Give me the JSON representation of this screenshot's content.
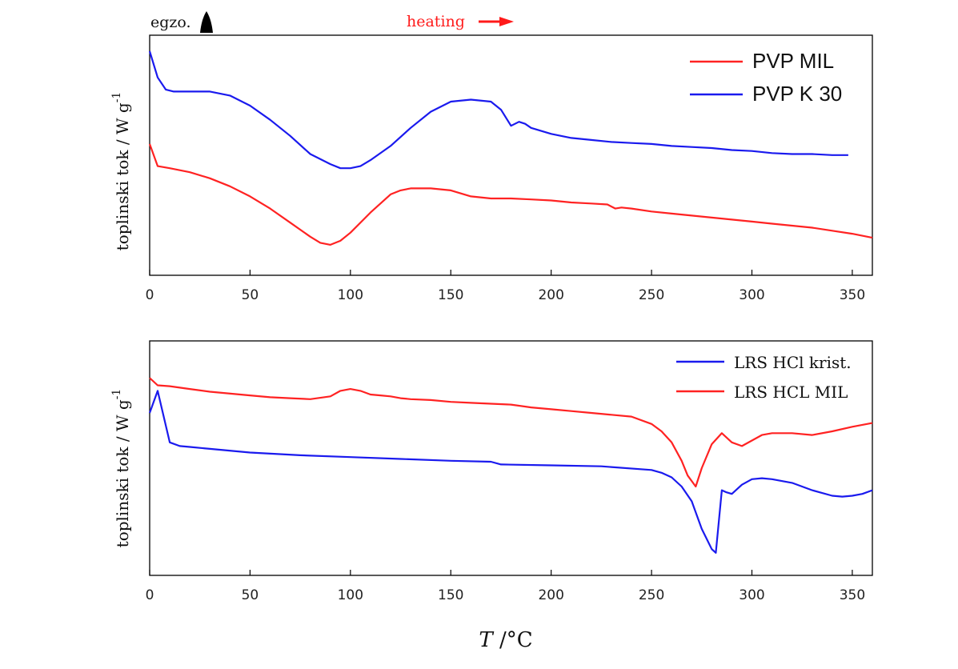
{
  "annotations": {
    "exo": "egzo.",
    "heating": "heating",
    "heating_color": "#ff1a1a"
  },
  "xlabel_var": "T",
  "xlabel_unit": " /°C",
  "chart_data": [
    {
      "type": "line",
      "ylabel": "toplinski tok / W g",
      "ylabel_sup": "-1",
      "xlim": [
        0,
        360
      ],
      "xticks": [
        0,
        50,
        100,
        150,
        200,
        250,
        300,
        350
      ],
      "ylim": [
        0,
        100
      ],
      "yticks_shown": false,
      "grid": false,
      "legend_position": "top-right",
      "series": [
        {
          "name": "PVP MIL",
          "color": "#ff2222",
          "x": [
            0,
            4,
            10,
            20,
            30,
            40,
            50,
            60,
            70,
            80,
            85,
            90,
            95,
            100,
            110,
            120,
            125,
            130,
            140,
            150,
            160,
            170,
            180,
            190,
            200,
            210,
            220,
            228,
            232,
            235,
            240,
            250,
            260,
            270,
            280,
            290,
            300,
            310,
            320,
            330,
            340,
            350,
            360
          ],
          "y": [
            54,
            43,
            42,
            40,
            37,
            33,
            28,
            22,
            15,
            8,
            5,
            4,
            6,
            10,
            20,
            29,
            31,
            32,
            32,
            31,
            28,
            27,
            27,
            26.5,
            26,
            25,
            24.5,
            24,
            22,
            22.5,
            22,
            20.5,
            19.5,
            18.5,
            17.5,
            16.5,
            15.5,
            14.5,
            13.5,
            12.5,
            11,
            9.5,
            7.5
          ]
        },
        {
          "name": "PVP K 30",
          "color": "#1a1aee",
          "x": [
            0,
            4,
            8,
            12,
            20,
            30,
            40,
            50,
            60,
            70,
            80,
            90,
            95,
            100,
            105,
            110,
            120,
            130,
            140,
            150,
            160,
            170,
            175,
            180,
            184,
            187,
            190,
            200,
            210,
            220,
            230,
            240,
            250,
            260,
            270,
            280,
            290,
            300,
            310,
            320,
            330,
            340,
            348
          ],
          "y": [
            100,
            87,
            81,
            80,
            80,
            80,
            78,
            73,
            66,
            58,
            49,
            44,
            42,
            42,
            43,
            46,
            53,
            62,
            70,
            75,
            76,
            75,
            71,
            63,
            65,
            64,
            62,
            59,
            57,
            56,
            55,
            54.5,
            54,
            53,
            52.5,
            52,
            51,
            50.5,
            49.5,
            49,
            49,
            48.5,
            48.5
          ]
        }
      ]
    },
    {
      "type": "line",
      "ylabel": "toplinski tok / W g",
      "ylabel_sup": "-1",
      "xlim": [
        0,
        360
      ],
      "xticks": [
        0,
        50,
        100,
        150,
        200,
        250,
        300,
        350
      ],
      "ylim": [
        0,
        100
      ],
      "yticks_shown": false,
      "grid": false,
      "legend_position": "top-right",
      "series": [
        {
          "name": "LRS HCl krist.",
          "color": "#1a1aee",
          "x": [
            0,
            4,
            10,
            15,
            20,
            30,
            50,
            75,
            100,
            125,
            150,
            170,
            175,
            200,
            225,
            250,
            255,
            260,
            265,
            270,
            275,
            280,
            282,
            285,
            287,
            290,
            295,
            300,
            305,
            310,
            320,
            330,
            340,
            345,
            350,
            355,
            360
          ],
          "y": [
            80,
            92,
            64,
            62,
            61.5,
            60.5,
            58.5,
            57,
            56,
            55,
            54,
            53.5,
            52,
            51.5,
            51,
            49,
            47.5,
            45,
            40,
            32,
            17,
            6,
            4,
            38,
            37,
            36,
            41,
            44,
            44.5,
            44,
            42,
            38,
            35,
            34.5,
            35,
            36,
            38
          ]
        },
        {
          "name": "LRS HCL MIL",
          "color": "#ff2222",
          "x": [
            0,
            4,
            10,
            20,
            30,
            50,
            60,
            70,
            80,
            90,
            95,
            100,
            105,
            110,
            115,
            120,
            125,
            130,
            140,
            150,
            160,
            170,
            180,
            190,
            200,
            210,
            220,
            230,
            240,
            250,
            255,
            260,
            265,
            268,
            272,
            275,
            280,
            285,
            290,
            295,
            300,
            305,
            310,
            320,
            330,
            340,
            350,
            360
          ],
          "y": [
            99,
            95,
            94.5,
            93,
            91.5,
            89.5,
            88.5,
            88,
            87.5,
            89,
            92,
            93,
            92,
            90,
            89.5,
            89,
            88,
            87.5,
            87,
            86,
            85.5,
            85,
            84.5,
            83,
            82,
            81,
            80,
            79,
            78,
            74,
            70,
            64,
            54,
            46,
            40,
            50,
            63,
            69,
            64,
            62,
            65,
            68,
            69,
            69,
            68,
            70,
            72.5,
            74.5
          ]
        }
      ]
    }
  ]
}
